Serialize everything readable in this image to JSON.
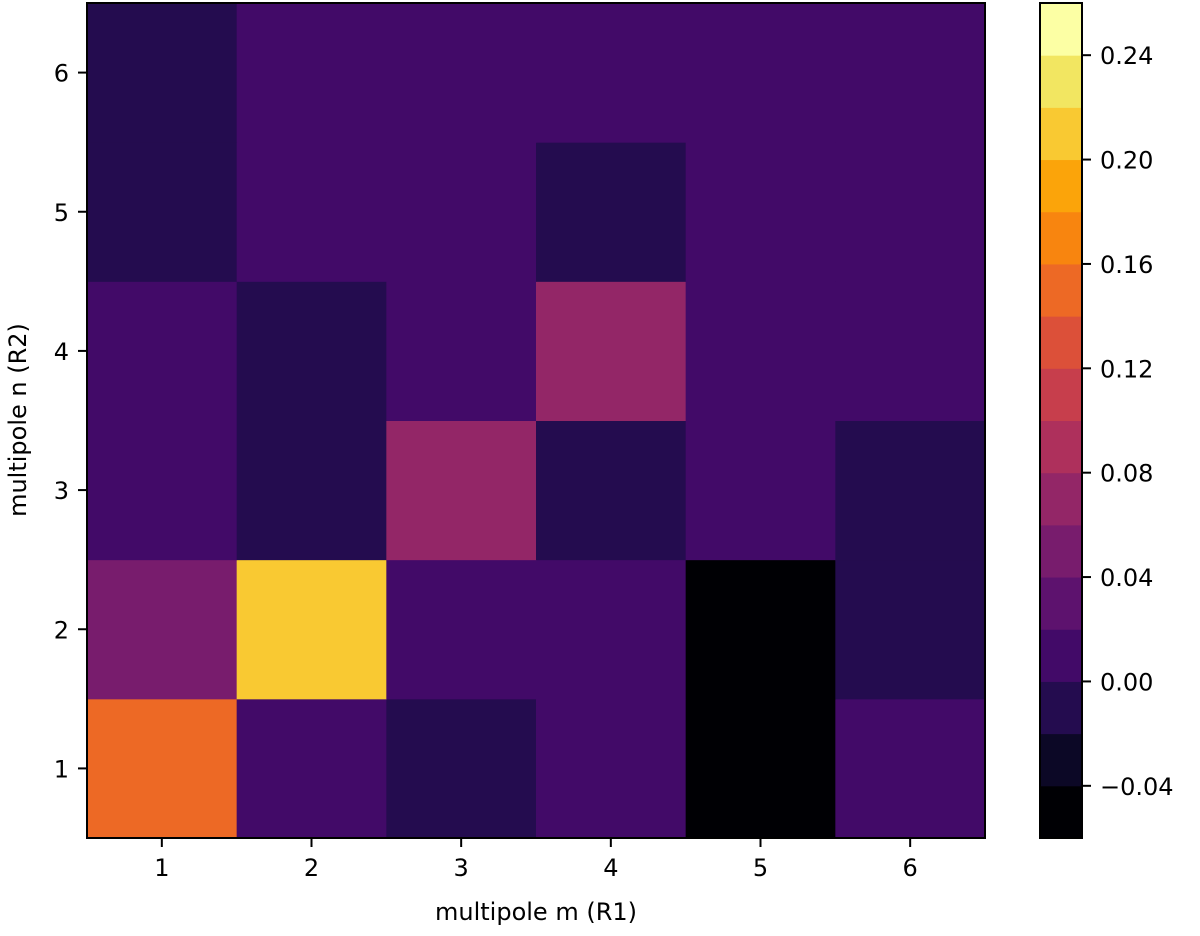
{
  "chart_data": {
    "type": "heatmap",
    "title": "",
    "xlabel": "multipole m (R1)",
    "ylabel": "multipole n (R2)",
    "x": [
      1,
      2,
      3,
      4,
      5,
      6
    ],
    "y": [
      1,
      2,
      3,
      4,
      5,
      6
    ],
    "xlim": [
      0.5,
      6.5
    ],
    "ylim": [
      0.5,
      6.5
    ],
    "values": [
      [
        0.14,
        0.01,
        -0.01,
        0.01,
        -0.04,
        0.01
      ],
      [
        0.04,
        0.21,
        0.01,
        0.01,
        -0.04,
        -0.01
      ],
      [
        0.01,
        -0.01,
        0.06,
        -0.01,
        0.01,
        -0.01
      ],
      [
        0.01,
        -0.01,
        0.01,
        0.06,
        0.01,
        0.01
      ],
      [
        -0.01,
        0.01,
        0.01,
        -0.01,
        0.01,
        0.01
      ],
      [
        -0.01,
        0.01,
        0.01,
        0.01,
        0.01,
        0.01
      ]
    ],
    "colormap": "inferno",
    "colorbar": {
      "range": [
        -0.06,
        0.26
      ],
      "bins": 16,
      "ticks": [
        -0.04,
        0.0,
        0.04,
        0.08,
        0.12,
        0.16,
        0.2,
        0.24
      ],
      "tick_labels": [
        "−0.04",
        "0.00",
        "0.04",
        "0.08",
        "0.12",
        "0.16",
        "0.20",
        "0.24"
      ],
      "colors": [
        "#000004",
        "#0c0826",
        "#240c4f",
        "#420a68",
        "#5d126e",
        "#781c6d",
        "#932667",
        "#ae305c",
        "#c73e4c",
        "#dc5039",
        "#ed6925",
        "#f8850f",
        "#fba40a",
        "#f9c932",
        "#f2e661",
        "#fcffa4"
      ]
    },
    "grid": false,
    "legend": "none"
  }
}
